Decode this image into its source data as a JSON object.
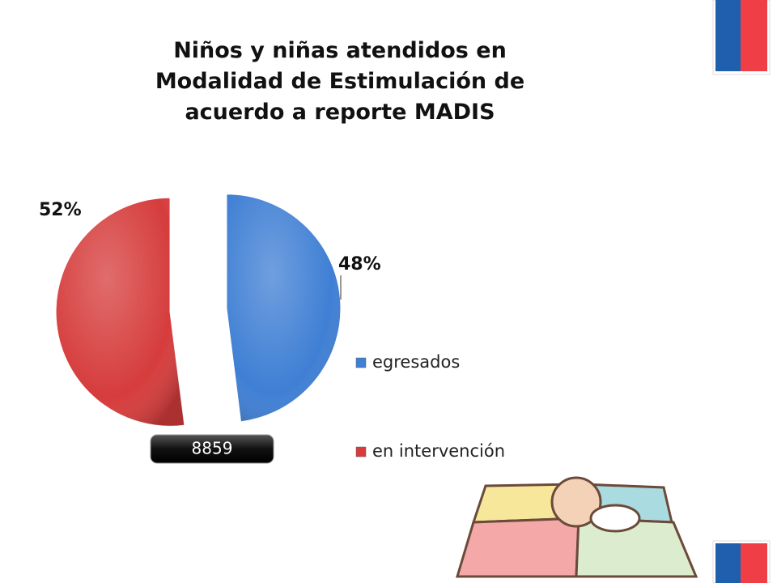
{
  "chart_data": {
    "type": "pie",
    "title": "Niños y niñas atendidos en Modalidad de Estimulación de acuerdo a reporte MADIS",
    "categories": [
      "egresados",
      "en intervención"
    ],
    "values": [
      48,
      52
    ],
    "value_labels": [
      "48%",
      "52%"
    ],
    "colors": [
      "#3f7fd4",
      "#d63c3c"
    ],
    "annotation": "8859",
    "legend": "right"
  }
}
